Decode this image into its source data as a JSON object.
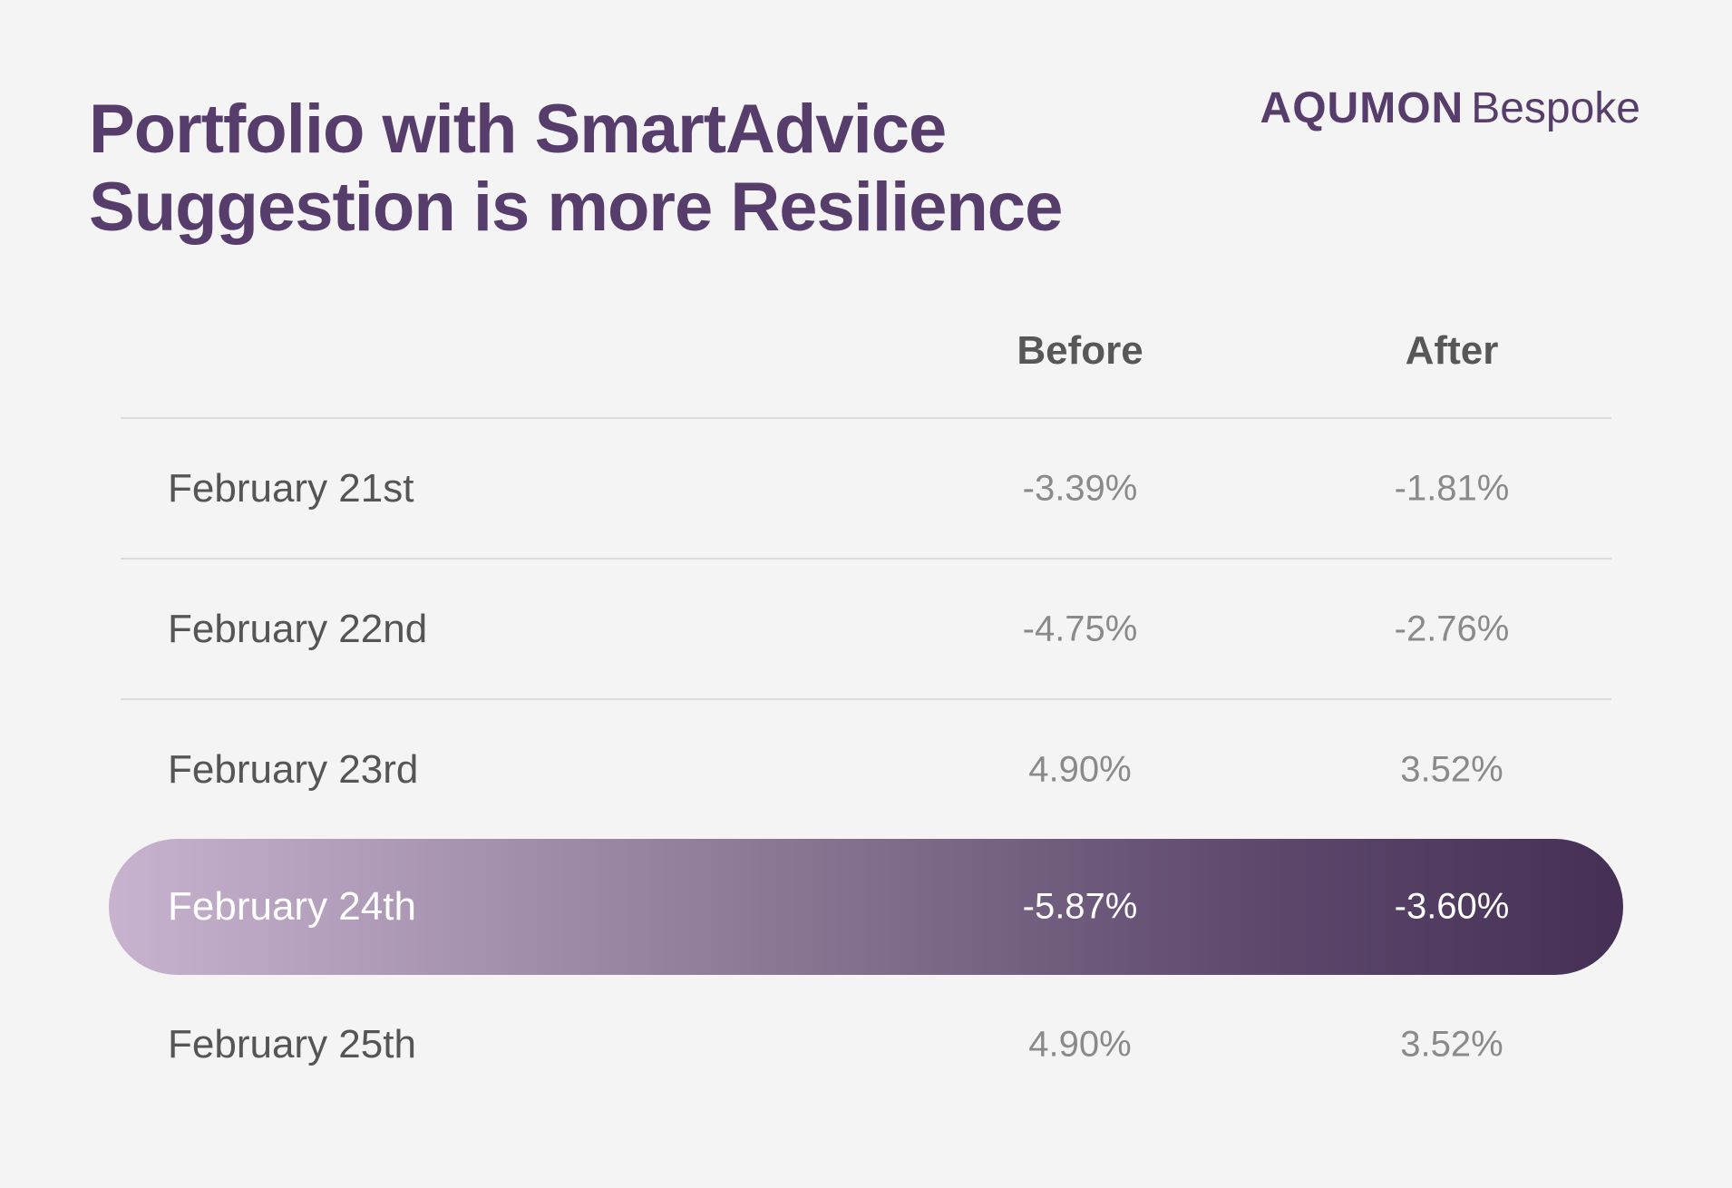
{
  "title_lines": [
    "Portfolio with SmartAdvice",
    "Suggestion is more Resilience"
  ],
  "brand": {
    "strong": "AQUMON",
    "light": "Bespoke"
  },
  "colors": {
    "title": "#573d6b",
    "highlight_start": "#c8b3cf",
    "highlight_end": "#452f55",
    "background": "#f4f4f4"
  },
  "chart_data": {
    "type": "table",
    "columns": [
      "Before",
      "After"
    ],
    "rows": [
      {
        "label": "February 21st",
        "before": "-3.39%",
        "after": "-1.81%",
        "highlighted": false
      },
      {
        "label": "February 22nd",
        "before": "-4.75%",
        "after": "-2.76%",
        "highlighted": false
      },
      {
        "label": "February 23rd",
        "before": "4.90%",
        "after": "3.52%",
        "highlighted": false
      },
      {
        "label": "February 24th",
        "before": "-5.87%",
        "after": "-3.60%",
        "highlighted": true
      },
      {
        "label": "February 25th",
        "before": "4.90%",
        "after": "3.52%",
        "highlighted": false
      }
    ]
  }
}
